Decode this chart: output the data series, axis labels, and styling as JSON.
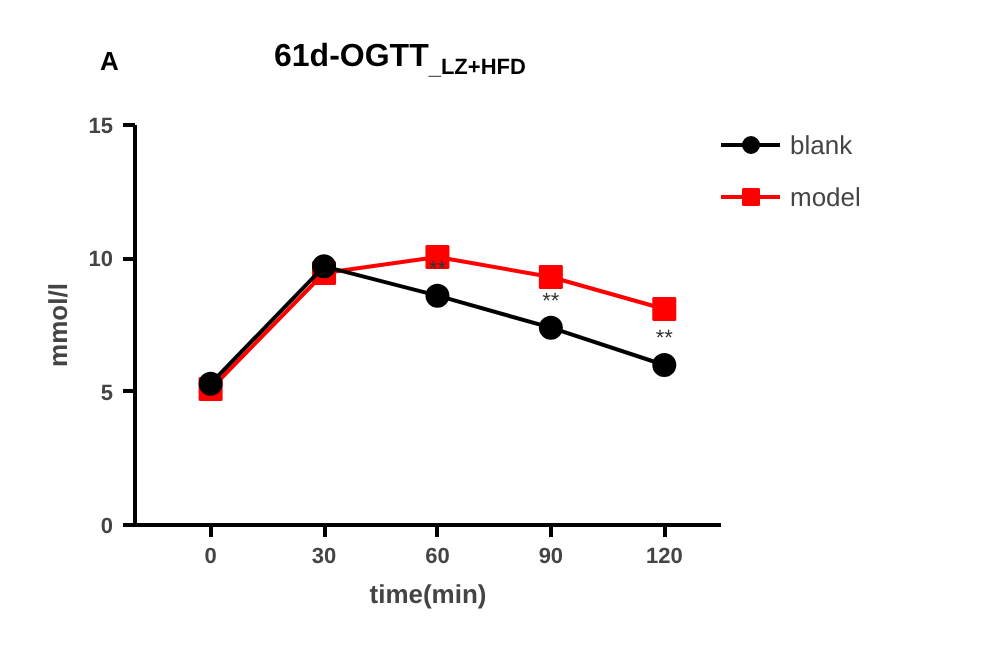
{
  "chart_data": {
    "type": "line",
    "title": "61d-OGTT$_{_LZ+HFD}$",
    "xlabel": "time(min)",
    "ylabel": "mmol/l",
    "x": [
      0,
      30,
      60,
      90,
      120
    ],
    "series": [
      {
        "name": "blank",
        "color": "#000000",
        "marker": "circle",
        "values": [
          5.3,
          9.7,
          8.6,
          7.4,
          6.0
        ]
      },
      {
        "name": "model",
        "color": "#ff0000",
        "marker": "square",
        "values": [
          5.1,
          9.45,
          10.05,
          9.3,
          8.1
        ]
      }
    ],
    "xlim": [
      -20,
      135
    ],
    "xticks": [
      0,
      30,
      60,
      90,
      120
    ],
    "ylim": [
      0,
      15
    ],
    "yticks": [
      0,
      5,
      10,
      15
    ],
    "grid": false,
    "legend": "top right",
    "annotations": [
      "A",
      {
        "text": "**",
        "x": 60,
        "y": 8.6
      },
      {
        "text": "**",
        "x": 90,
        "y": 7.4
      },
      {
        "text": "**",
        "x": 120,
        "y": 6.0
      }
    ]
  }
}
